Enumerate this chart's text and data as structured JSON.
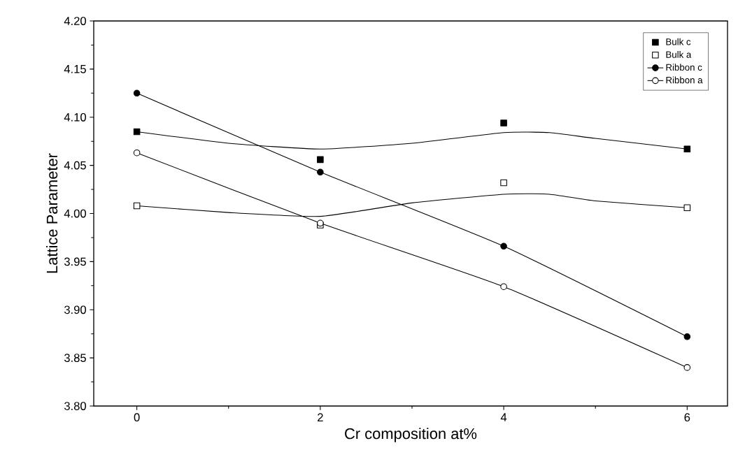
{
  "chart_data": {
    "type": "line",
    "xlabel": "Cr composition at%",
    "ylabel": "Lattice Parameter",
    "x": [
      0,
      2,
      4,
      6
    ],
    "series": [
      {
        "name": "Bulk c",
        "type": "scatter",
        "color": "#000000",
        "marker": "square",
        "values": [
          4.085,
          4.056,
          4.094,
          4.067
        ]
      },
      {
        "name": "Bulk a",
        "type": "scatter",
        "color": "#ffffff",
        "marker": "square",
        "values": [
          4.008,
          3.988,
          4.032,
          4.006
        ]
      },
      {
        "name": "Ribbon c",
        "color": "#000000",
        "marker": "circle",
        "values": [
          4.125,
          4.043,
          3.966,
          3.872
        ]
      },
      {
        "name": "Ribbon a",
        "color": "#ffffff",
        "marker": "circle",
        "values": [
          4.063,
          3.99,
          3.924,
          3.84
        ]
      },
      {
        "color": "#000000",
        "marker": "none",
        "x": [
          0,
          1,
          2,
          3,
          4,
          4.5,
          5,
          6
        ],
        "values": [
          4.085,
          4.073,
          4.067,
          4.073,
          4.084,
          4.084,
          4.078,
          4.067
        ]
      },
      {
        "color": "#000000",
        "marker": "none",
        "x": [
          0,
          1,
          2,
          3,
          4,
          4.5,
          5,
          6
        ],
        "values": [
          4.008,
          4.001,
          3.997,
          4.011,
          4.02,
          4.02,
          4.013,
          4.006
        ]
      }
    ],
    "xlim": [
      -0.47,
      6.44
    ],
    "ylim": [
      3.8,
      4.2
    ],
    "xticks": [
      0,
      2,
      4,
      6
    ],
    "yticks": [
      {
        "value": 3.8,
        "label": "3.80"
      },
      {
        "value": 3.85,
        "label": "3.85"
      },
      {
        "value": 3.9,
        "label": "3.90"
      },
      {
        "value": 3.95,
        "label": "3.95"
      },
      {
        "value": 4.0,
        "label": "4.00"
      },
      {
        "value": 4.05,
        "label": "4.05"
      },
      {
        "value": 4.1,
        "label": "4.10"
      },
      {
        "value": 4.15,
        "label": "4.15"
      },
      {
        "value": 4.2,
        "label": "4.20"
      }
    ],
    "grid": false,
    "legend": "top right",
    "line_style": "solid"
  }
}
